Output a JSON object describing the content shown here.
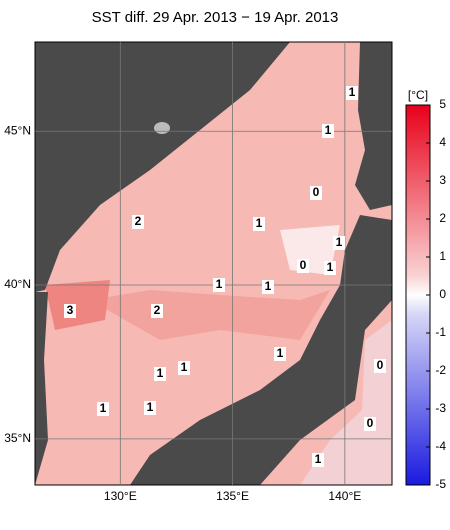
{
  "title": "SST diff. 29 Apr. 2013 − 19 Apr. 2013",
  "map": {
    "lonlim": [
      126.2,
      142.1
    ],
    "latlim": [
      33.5,
      47.9
    ],
    "lonticks": [
      {
        "value": 130,
        "label": "130°E"
      },
      {
        "value": 135,
        "label": "135°E"
      },
      {
        "value": 140,
        "label": "140°E"
      }
    ],
    "latticks": [
      {
        "value": 45,
        "label": "45°N"
      },
      {
        "value": 40,
        "label": "40°N"
      },
      {
        "value": 35,
        "label": "35°N"
      }
    ],
    "contour_labels": [
      1,
      1,
      0,
      2,
      1,
      1,
      0,
      1,
      1,
      1,
      3,
      2,
      1,
      1,
      1,
      0,
      1,
      1,
      0,
      1
    ]
  },
  "colorbar": {
    "unit": "[°C]",
    "ticks": [
      5,
      4,
      3,
      2,
      1,
      0,
      -1,
      -2,
      -3,
      -4,
      -5
    ]
  }
}
